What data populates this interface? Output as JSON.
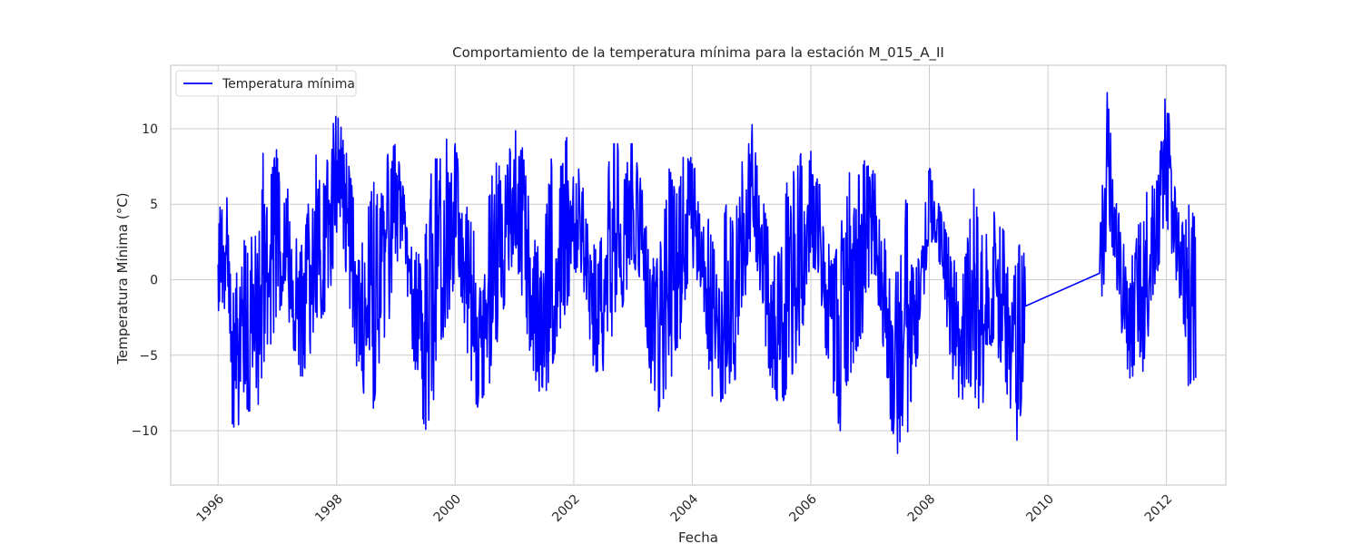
{
  "chart_data": {
    "type": "line",
    "title": "Comportamiento de la temperatura mínima para la estación M_015_A_II",
    "xlabel": "Fecha",
    "ylabel": "Temperatura Mínima (°C)",
    "x_ticks": [
      "1996",
      "1998",
      "2000",
      "2002",
      "2004",
      "2006",
      "2008",
      "2010",
      "2012"
    ],
    "y_ticks": [
      "−10",
      "−5",
      "0",
      "5",
      "10"
    ],
    "y_tick_values": [
      -10,
      -5,
      0,
      5,
      10
    ],
    "xlim": [
      "1995-03-15",
      "2013-01-01"
    ],
    "ylim": [
      -13.6,
      14.2
    ],
    "grid": true,
    "legend": "top-left",
    "series": [
      {
        "name": "Temperatura mínima",
        "color": "#0000ff",
        "notes_gap": "data gap between 2009-08 and 2010-11 drawn as a straight segment",
        "x": [
          "1996-01-01",
          "1996-02-15",
          "1996-04-01",
          "1996-05-15",
          "1996-07-01",
          "1996-08-15",
          "1996-10-01",
          "1996-11-15",
          "1997-01-01",
          "1997-02-15",
          "1997-04-01",
          "1997-05-15",
          "1997-07-01",
          "1997-08-15",
          "1997-10-01",
          "1997-11-15",
          "1998-01-01",
          "1998-02-15",
          "1998-04-01",
          "1998-05-15",
          "1998-07-01",
          "1998-08-15",
          "1998-10-01",
          "1998-11-15",
          "1999-01-01",
          "1999-02-15",
          "1999-04-01",
          "1999-05-15",
          "1999-07-01",
          "1999-08-15",
          "1999-10-01",
          "1999-11-15",
          "2000-01-01",
          "2000-02-15",
          "2000-04-01",
          "2000-05-15",
          "2000-07-01",
          "2000-08-15",
          "2000-10-01",
          "2000-11-15",
          "2001-01-01",
          "2001-02-15",
          "2001-04-01",
          "2001-05-15",
          "2001-07-01",
          "2001-08-15",
          "2001-10-01",
          "2001-11-15",
          "2002-01-01",
          "2002-02-15",
          "2002-04-01",
          "2002-05-15",
          "2002-07-01",
          "2002-08-15",
          "2002-10-01",
          "2002-11-15",
          "2003-01-01",
          "2003-02-15",
          "2003-04-01",
          "2003-05-15",
          "2003-07-01",
          "2003-08-15",
          "2003-10-01",
          "2003-11-15",
          "2004-01-01",
          "2004-02-15",
          "2004-04-01",
          "2004-05-15",
          "2004-07-01",
          "2004-08-15",
          "2004-10-01",
          "2004-11-15",
          "2005-01-01",
          "2005-02-15",
          "2005-04-01",
          "2005-05-15",
          "2005-07-01",
          "2005-08-15",
          "2005-10-01",
          "2005-11-15",
          "2006-01-01",
          "2006-02-15",
          "2006-04-01",
          "2006-05-15",
          "2006-07-01",
          "2006-08-15",
          "2006-10-01",
          "2006-11-15",
          "2007-01-01",
          "2007-02-15",
          "2007-04-01",
          "2007-05-15",
          "2007-07-01",
          "2007-08-15",
          "2007-10-01",
          "2007-11-15",
          "2008-01-01",
          "2008-02-15",
          "2008-06-15",
          "2008-07-15",
          "2008-08-15",
          "2008-10-01",
          "2008-11-15",
          "2009-01-01",
          "2009-02-15",
          "2009-04-01",
          "2009-05-15",
          "2009-06-15",
          "2009-07-15",
          "2009-08-15",
          "2010-11-15",
          "2011-01-01",
          "2011-02-15",
          "2011-04-01",
          "2011-05-15",
          "2011-07-01",
          "2011-08-15",
          "2011-10-01",
          "2011-11-15",
          "2012-01-01",
          "2012-02-15",
          "2012-04-01",
          "2012-05-15",
          "2012-06-30"
        ],
        "upper": [
          5.8,
          6.4,
          1.5,
          -0.5,
          5.0,
          2.5,
          8.5,
          6.5,
          9.0,
          7.0,
          4.5,
          1.5,
          4.0,
          9.0,
          6.0,
          9.5,
          11.0,
          9.5,
          6.5,
          2.5,
          4.0,
          6.5,
          5.5,
          8.5,
          9.0,
          6.0,
          3.0,
          1.5,
          3.0,
          8.0,
          8.0,
          9.5,
          9.0,
          6.0,
          4.0,
          2.5,
          2.0,
          8.0,
          7.5,
          9.5,
          10.0,
          9.0,
          5.0,
          2.0,
          3.0,
          8.0,
          7.0,
          9.5,
          8.0,
          7.0,
          3.5,
          2.0,
          3.0,
          9.0,
          9.0,
          9.0,
          9.0,
          7.0,
          3.0,
          1.0,
          3.0,
          8.0,
          6.5,
          8.5,
          8.0,
          7.0,
          4.5,
          2.0,
          3.0,
          8.0,
          6.0,
          9.0,
          10.5,
          7.0,
          4.0,
          1.5,
          2.0,
          7.5,
          7.0,
          9.0,
          8.5,
          7.0,
          3.5,
          1.0,
          3.0,
          7.5,
          6.0,
          8.0,
          8.0,
          6.5,
          4.0,
          0.5,
          0.5,
          6.0,
          0.0,
          3.0,
          7.5,
          5.5,
          1.0,
          -0.5,
          2.0,
          6.0,
          3.0,
          3.0,
          5.0,
          3.5,
          -0.5,
          1.5,
          2.5,
          2.5,
          2.5,
          12.5,
          6.5,
          3.0,
          0.5,
          3.0,
          6.5,
          6.0,
          7.5,
          13.0,
          7.0,
          3.5,
          5.0,
          4.0
        ],
        "lower": [
          -2.0,
          -3.0,
          -10.0,
          -9.5,
          -8.5,
          -10.0,
          -6.0,
          -4.5,
          -2.5,
          -1.0,
          -4.0,
          -6.5,
          -6.5,
          -3.0,
          -2.5,
          -1.5,
          3.0,
          2.0,
          -3.5,
          -6.5,
          -8.0,
          -8.5,
          -4.5,
          -3.0,
          0.5,
          2.5,
          -3.5,
          -7.5,
          -10.0,
          -8.5,
          -4.0,
          -3.5,
          0.5,
          -1.5,
          -6.5,
          -8.5,
          -7.5,
          -6.5,
          -3.0,
          -1.0,
          2.0,
          -1.0,
          -4.5,
          -7.0,
          -8.0,
          -6.0,
          -3.5,
          -2.0,
          0.5,
          0.5,
          -4.0,
          -6.5,
          -6.0,
          -5.0,
          -3.0,
          -1.0,
          1.0,
          0.0,
          -4.5,
          -9.5,
          -8.0,
          -7.0,
          -4.5,
          -3.0,
          1.0,
          -0.5,
          -5.5,
          -8.5,
          -8.0,
          -7.0,
          -6.5,
          -3.0,
          3.0,
          0.0,
          -5.0,
          -7.5,
          -8.5,
          -7.0,
          -5.5,
          -3.0,
          1.0,
          0.5,
          -4.5,
          -8.0,
          -10.0,
          -7.0,
          -5.0,
          -3.5,
          0.0,
          -1.0,
          -6.0,
          -10.0,
          -12.0,
          -10.5,
          -7.0,
          -2.5,
          2.5,
          2.5,
          -8.5,
          -8.5,
          -6.5,
          -7.5,
          -9.0,
          -5.5,
          -4.5,
          -6.5,
          -8.5,
          -12.5,
          -9.0,
          -6.0,
          -2.0,
          1.0,
          0.5,
          -3.5,
          -6.5,
          -6.5,
          -6.0,
          -2.0,
          1.0,
          2.5,
          1.5,
          -3.5,
          -7.0,
          -6.5
        ]
      }
    ]
  }
}
